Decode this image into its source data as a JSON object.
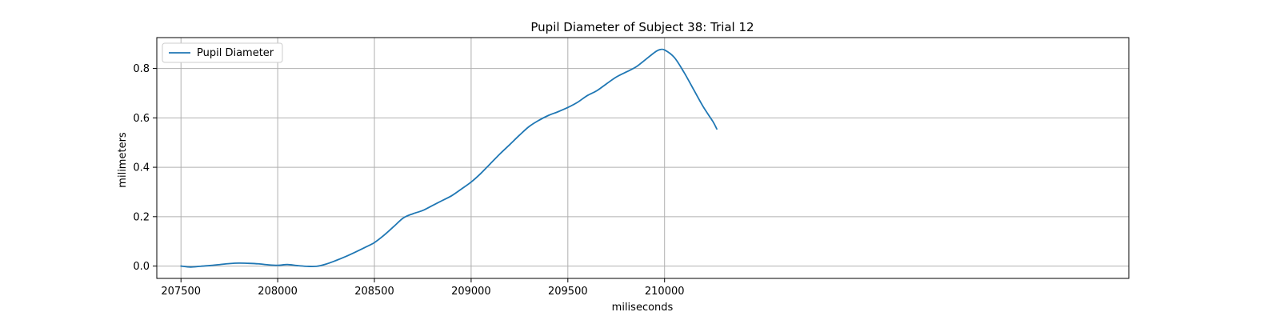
{
  "chart_data": {
    "type": "line",
    "title": "Pupil Diameter of Subject 38: Trial 12",
    "xlabel": "miliseconds",
    "ylabel": "milimeters",
    "xlim": [
      207375,
      212400
    ],
    "ylim": [
      -0.05,
      0.925
    ],
    "xticks": [
      207500,
      208000,
      208500,
      209000,
      209500,
      210000
    ],
    "yticks": [
      0.0,
      0.2,
      0.4,
      0.6,
      0.8
    ],
    "ytick_labels": [
      "0.0",
      "0.2",
      "0.4",
      "0.6",
      "0.8"
    ],
    "grid": true,
    "legend_position": "top-left",
    "series": [
      {
        "name": "Pupil Diameter",
        "color": "#1f77b4",
        "x": [
          207500,
          207550,
          207600,
          207650,
          207700,
          207750,
          207800,
          207850,
          207900,
          207950,
          208000,
          208050,
          208100,
          208150,
          208200,
          208250,
          208300,
          208350,
          208400,
          208450,
          208500,
          208550,
          208600,
          208650,
          208700,
          208750,
          208800,
          208850,
          208900,
          208950,
          209000,
          209050,
          209100,
          209150,
          209200,
          209250,
          209300,
          209350,
          209400,
          209450,
          209500,
          209550,
          209600,
          209650,
          209700,
          209750,
          209800,
          209850,
          209900,
          209950,
          209975,
          210000,
          210050,
          210100,
          210150,
          210200,
          210250,
          210270
        ],
        "y": [
          0.0,
          -0.004,
          -0.001,
          0.002,
          0.006,
          0.01,
          0.012,
          0.011,
          0.009,
          0.005,
          0.003,
          0.006,
          0.002,
          -0.001,
          -0.001,
          0.008,
          0.022,
          0.038,
          0.056,
          0.075,
          0.095,
          0.125,
          0.16,
          0.195,
          0.212,
          0.225,
          0.245,
          0.265,
          0.285,
          0.312,
          0.34,
          0.375,
          0.415,
          0.455,
          0.492,
          0.53,
          0.565,
          0.59,
          0.61,
          0.625,
          0.642,
          0.663,
          0.69,
          0.71,
          0.738,
          0.765,
          0.785,
          0.805,
          0.835,
          0.866,
          0.876,
          0.875,
          0.845,
          0.785,
          0.715,
          0.645,
          0.585,
          0.555
        ]
      }
    ]
  }
}
